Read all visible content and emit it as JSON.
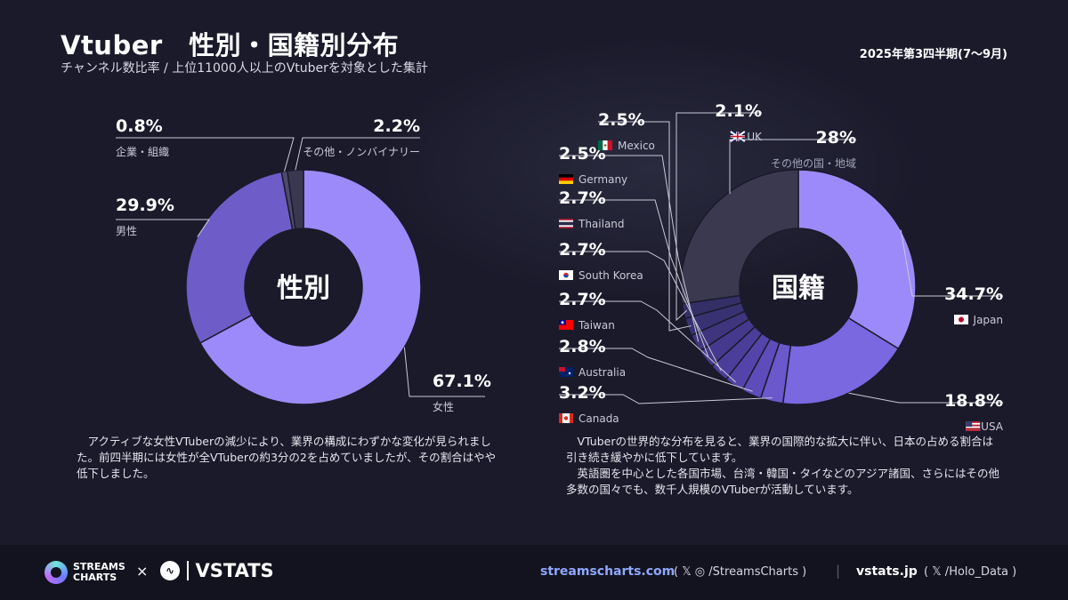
{
  "header": {
    "title": "Vtuber　性別・国籍別分布",
    "subtitle": "チャンネル数比率 / 上位11000人以上のVtuberを対象とした集計",
    "period": "2025年第3四半期(7〜9月)"
  },
  "chart_data": [
    {
      "type": "pie",
      "center_label": "性別",
      "slices": [
        {
          "label": "女性",
          "value": 67.1,
          "pct": "67.1%",
          "color": "#9d8afa"
        },
        {
          "label": "男性",
          "value": 29.9,
          "pct": "29.9%",
          "color": "#6e5cc8"
        },
        {
          "label": "企業・組織",
          "value": 0.8,
          "pct": "0.8%",
          "color": "#4d4a6e"
        },
        {
          "label": "その他・ノンバイナリー",
          "value": 2.2,
          "pct": "2.2%",
          "color": "#3a3850"
        }
      ]
    },
    {
      "type": "pie",
      "center_label": "国籍",
      "slices": [
        {
          "label": "Japan",
          "value": 34.7,
          "pct": "34.7%",
          "color": "#9d8afa",
          "flag": "jp"
        },
        {
          "label": "USA",
          "value": 18.8,
          "pct": "18.8%",
          "color": "#7a68e0",
          "flag": "us"
        },
        {
          "label": "Canada",
          "value": 3.2,
          "pct": "3.2%",
          "color": "#6a58cc",
          "flag": "ca"
        },
        {
          "label": "Australia",
          "value": 2.8,
          "pct": "2.8%",
          "color": "#5d4cba",
          "flag": "au"
        },
        {
          "label": "Taiwan",
          "value": 2.7,
          "pct": "2.7%",
          "color": "#5444aa",
          "flag": "tw"
        },
        {
          "label": "South Korea",
          "value": 2.7,
          "pct": "2.7%",
          "color": "#4b3e9a",
          "flag": "kr"
        },
        {
          "label": "Thailand",
          "value": 2.7,
          "pct": "2.7%",
          "color": "#44398c",
          "flag": "th"
        },
        {
          "label": "Germany",
          "value": 2.5,
          "pct": "2.5%",
          "color": "#3e357e",
          "flag": "de"
        },
        {
          "label": "Mexico",
          "value": 2.5,
          "pct": "2.5%",
          "color": "#393272",
          "flag": "mx"
        },
        {
          "label": "UK",
          "value": 2.1,
          "pct": "2.1%",
          "color": "#342f66",
          "flag": "uk"
        },
        {
          "label": "その他の国・地域",
          "value": 28,
          "pct": "28%",
          "color": "#3b394f"
        }
      ]
    }
  ],
  "descriptions": {
    "gender": [
      "アクティブな女性VTuberの減少により、業界の構成にわずかな変化が見られました。前四半期には女性が全VTuberの約3分の2を占めていましたが、その割合はやや低下しました。"
    ],
    "nationality": [
      "VTuberの世界的な分布を見ると、業界の国際的な拡大に伴い、日本の占める割合は引き続き緩やかに低下しています。",
      "英語圏を中心とした各国市場、台湾・韓国・タイなどのアジア諸国、さらにはその他多数の国々でも、数千人規模のVTuberが活動しています。"
    ]
  },
  "footer": {
    "brand1": "STREAMS CHARTS",
    "times": "×",
    "brand2": "VSTATS",
    "site1": "streamscharts.com",
    "social1": "( 𝕏  ◎  /StreamsCharts )",
    "sep": "|",
    "site2": "vstats.jp",
    "social2": "( 𝕏  /Holo_Data )"
  }
}
